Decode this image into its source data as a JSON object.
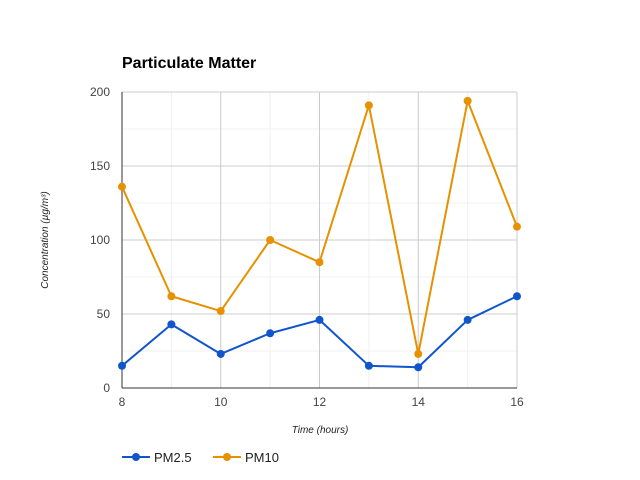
{
  "chart_data": {
    "type": "line",
    "title": "Particulate Matter",
    "xlabel": "Time (hours)",
    "ylabel": "Concentration (µg/m³)",
    "x": [
      8,
      9,
      10,
      11,
      12,
      13,
      14,
      15,
      16
    ],
    "x_ticks": [
      8,
      10,
      12,
      14,
      16
    ],
    "y_ticks": [
      0,
      50,
      100,
      150,
      200
    ],
    "xlim": [
      8,
      16
    ],
    "ylim": [
      0,
      200
    ],
    "grid": true,
    "legend_position": "bottom-left",
    "series": [
      {
        "name": "PM2.5",
        "color": "#1155cc",
        "values": [
          15,
          43,
          23,
          37,
          46,
          15,
          14,
          46,
          62
        ]
      },
      {
        "name": "PM10",
        "color": "#e69100",
        "values": [
          136,
          62,
          52,
          100,
          85,
          191,
          23,
          194,
          109
        ]
      }
    ]
  }
}
